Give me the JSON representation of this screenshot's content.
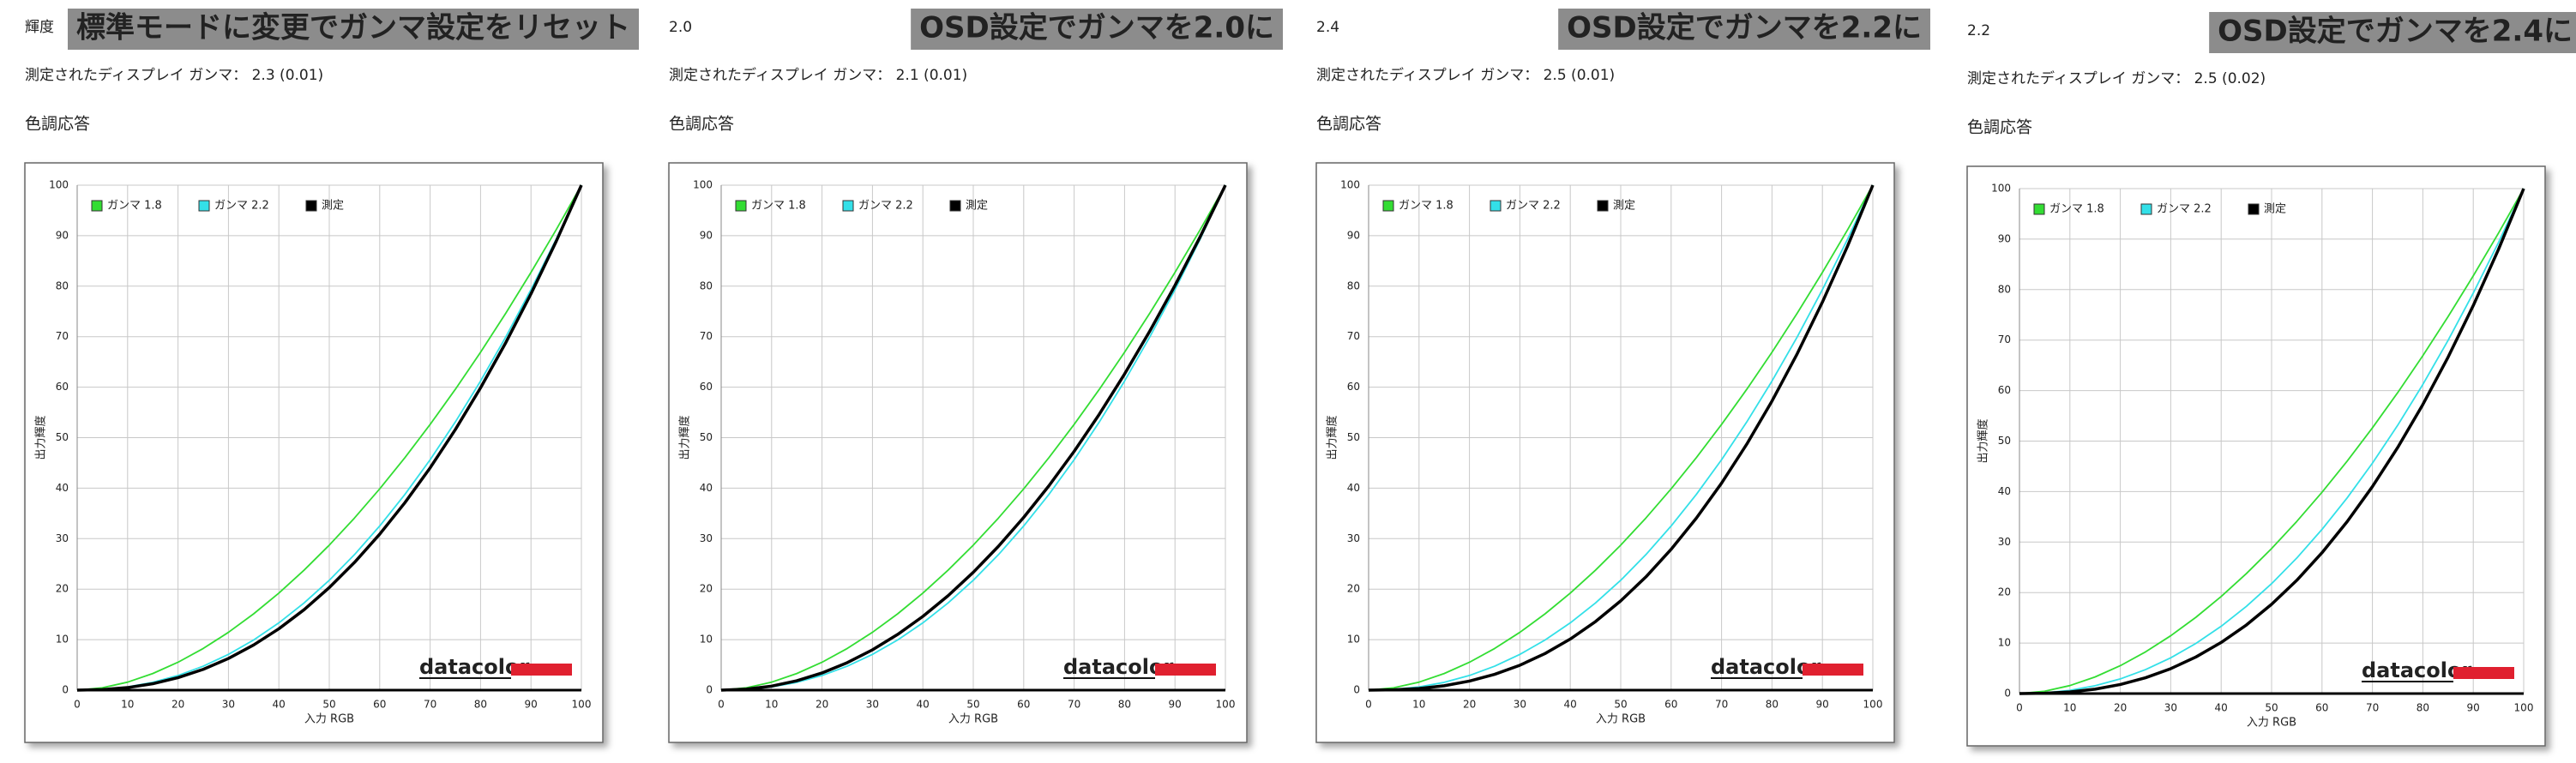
{
  "chart_data": [
    {
      "type": "line",
      "header": "輝度",
      "banner": "標準モードに変更でガンマ設定をリセット",
      "banner_color": "#33ff33",
      "banner_background": "#8c8c8c",
      "measured_label": "測定されたディスプレイ ガンマ： 2.3 (0.01)",
      "section_title": "色調応答",
      "xlabel": "入力 RGB",
      "ylabel": "出力輝度",
      "logo": "datacolor",
      "x": [
        0,
        5,
        10,
        15,
        20,
        25,
        30,
        35,
        40,
        45,
        50,
        55,
        60,
        65,
        70,
        75,
        80,
        85,
        90,
        95,
        100
      ],
      "series": [
        {
          "name": "ガンマ 1.8",
          "color": "#33dd33",
          "values": [
            0,
            0.46,
            1.58,
            3.29,
            5.52,
            8.25,
            11.45,
            15.11,
            19.22,
            23.76,
            28.72,
            34.09,
            39.87,
            46.05,
            52.62,
            59.58,
            66.92,
            74.64,
            82.73,
            91.18,
            100
          ]
        },
        {
          "name": "ガンマ 2.2",
          "color": "#33e0e8",
          "values": [
            0,
            0.14,
            0.63,
            1.54,
            2.9,
            4.74,
            7.08,
            9.93,
            13.32,
            17.26,
            21.76,
            26.84,
            32.51,
            38.76,
            45.63,
            53.11,
            61.21,
            69.94,
            79.31,
            89.33,
            100
          ]
        },
        {
          "name": "測定",
          "color": "#000000",
          "values": [
            0,
            0.1,
            0.5,
            1.27,
            2.47,
            4.12,
            6.27,
            8.94,
            12.15,
            15.93,
            20.31,
            25.29,
            30.89,
            37.13,
            44.02,
            51.6,
            59.87,
            68.81,
            78.48,
            88.87,
            100
          ]
        }
      ],
      "xlim": [
        0,
        100
      ],
      "ylim": [
        0,
        100
      ],
      "xticks": [
        0,
        10,
        20,
        30,
        40,
        50,
        60,
        70,
        80,
        90,
        100
      ],
      "yticks": [
        0,
        10,
        20,
        30,
        40,
        50,
        60,
        70,
        80,
        90,
        100
      ],
      "grid": true,
      "legend": "upper left"
    },
    {
      "type": "line",
      "header": "2.0",
      "banner": "OSD設定でガンマを2.0に",
      "banner_color": "#00ffff",
      "banner_background": "#8c8c8c",
      "measured_label": "測定されたディスプレイ ガンマ： 2.1 (0.01)",
      "section_title": "色調応答",
      "xlabel": "入力 RGB",
      "ylabel": "出力輝度",
      "logo": "datacolor",
      "x": [
        0,
        5,
        10,
        15,
        20,
        25,
        30,
        35,
        40,
        45,
        50,
        55,
        60,
        65,
        70,
        75,
        80,
        85,
        90,
        95,
        100
      ],
      "series": [
        {
          "name": "ガンマ 1.8",
          "color": "#33dd33",
          "values": [
            0,
            0.46,
            1.58,
            3.29,
            5.52,
            8.25,
            11.45,
            15.11,
            19.22,
            23.76,
            28.72,
            34.09,
            39.87,
            46.05,
            52.62,
            59.58,
            66.92,
            74.64,
            82.73,
            91.18,
            100
          ]
        },
        {
          "name": "ガンマ 2.2",
          "color": "#33e0e8",
          "values": [
            0,
            0.14,
            0.63,
            1.54,
            2.9,
            4.74,
            7.08,
            9.93,
            13.32,
            17.26,
            21.76,
            26.84,
            32.51,
            38.76,
            45.63,
            53.11,
            61.21,
            69.94,
            79.31,
            89.33,
            100
          ]
        },
        {
          "name": "測定",
          "color": "#000000",
          "values": [
            0,
            0.19,
            0.79,
            1.86,
            3.4,
            5.44,
            7.98,
            11.03,
            14.6,
            18.7,
            23.33,
            28.5,
            34.21,
            40.47,
            47.28,
            54.65,
            62.6,
            71.09,
            80.15,
            89.79,
            100
          ]
        }
      ],
      "xlim": [
        0,
        100
      ],
      "ylim": [
        0,
        100
      ],
      "xticks": [
        0,
        10,
        20,
        30,
        40,
        50,
        60,
        70,
        80,
        90,
        100
      ],
      "yticks": [
        0,
        10,
        20,
        30,
        40,
        50,
        60,
        70,
        80,
        90,
        100
      ],
      "grid": true,
      "legend": "upper left"
    },
    {
      "type": "line",
      "header": "2.4",
      "banner": "OSD設定でガンマを2.2に",
      "banner_color": "#00ffff",
      "banner_background": "#8c8c8c",
      "measured_label": "測定されたディスプレイ ガンマ： 2.5 (0.01)",
      "section_title": "色調応答",
      "xlabel": "入力 RGB",
      "ylabel": "出力輝度",
      "logo": "datacolor",
      "x": [
        0,
        5,
        10,
        15,
        20,
        25,
        30,
        35,
        40,
        45,
        50,
        55,
        60,
        65,
        70,
        75,
        80,
        85,
        90,
        95,
        100
      ],
      "series": [
        {
          "name": "ガンマ 1.8",
          "color": "#33dd33",
          "values": [
            0,
            0.46,
            1.58,
            3.29,
            5.52,
            8.25,
            11.45,
            15.11,
            19.22,
            23.76,
            28.72,
            34.09,
            39.87,
            46.05,
            52.62,
            59.58,
            66.92,
            74.64,
            82.73,
            91.18,
            100
          ]
        },
        {
          "name": "ガンマ 2.2",
          "color": "#33e0e8",
          "values": [
            0,
            0.14,
            0.63,
            1.54,
            2.9,
            4.74,
            7.08,
            9.93,
            13.32,
            17.26,
            21.76,
            26.84,
            32.51,
            38.76,
            45.63,
            53.11,
            61.21,
            69.94,
            79.31,
            89.33,
            100
          ]
        },
        {
          "name": "測定",
          "color": "#000000",
          "values": [
            0,
            0.06,
            0.32,
            0.87,
            1.79,
            3.13,
            4.93,
            7.25,
            10.12,
            13.58,
            17.68,
            22.43,
            27.89,
            34.06,
            40.99,
            48.71,
            57.24,
            66.61,
            76.84,
            87.96,
            100
          ]
        }
      ],
      "xlim": [
        0,
        100
      ],
      "ylim": [
        0,
        100
      ],
      "xticks": [
        0,
        10,
        20,
        30,
        40,
        50,
        60,
        70,
        80,
        90,
        100
      ],
      "yticks": [
        0,
        10,
        20,
        30,
        40,
        50,
        60,
        70,
        80,
        90,
        100
      ],
      "grid": true,
      "legend": "upper left"
    },
    {
      "type": "line",
      "header": "2.2",
      "banner": "OSD設定でガンマを2.4に",
      "banner_color": "#00ffff",
      "banner_background": "#8c8c8c",
      "measured_label": "測定されたディスプレイ ガンマ： 2.5 (0.02)",
      "section_title": "色調応答",
      "xlabel": "入力 RGB",
      "ylabel": "出力輝度",
      "logo": "datacolor",
      "x": [
        0,
        5,
        10,
        15,
        20,
        25,
        30,
        35,
        40,
        45,
        50,
        55,
        60,
        65,
        70,
        75,
        80,
        85,
        90,
        95,
        100
      ],
      "series": [
        {
          "name": "ガンマ 1.8",
          "color": "#33dd33",
          "values": [
            0,
            0.46,
            1.58,
            3.29,
            5.52,
            8.25,
            11.45,
            15.11,
            19.22,
            23.76,
            28.72,
            34.09,
            39.87,
            46.05,
            52.62,
            59.58,
            66.92,
            74.64,
            82.73,
            91.18,
            100
          ]
        },
        {
          "name": "ガンマ 2.2",
          "color": "#33e0e8",
          "values": [
            0,
            0.14,
            0.63,
            1.54,
            2.9,
            4.74,
            7.08,
            9.93,
            13.32,
            17.26,
            21.76,
            26.84,
            32.51,
            38.76,
            45.63,
            53.11,
            61.21,
            69.94,
            79.31,
            89.33,
            100
          ]
        },
        {
          "name": "測定",
          "color": "#000000",
          "values": [
            0,
            0.06,
            0.32,
            0.87,
            1.79,
            3.13,
            4.93,
            7.25,
            10.12,
            13.58,
            17.68,
            22.43,
            27.89,
            34.06,
            40.99,
            48.71,
            57.24,
            66.61,
            76.84,
            87.96,
            100
          ]
        }
      ],
      "xlim": [
        0,
        100
      ],
      "ylim": [
        0,
        100
      ],
      "xticks": [
        0,
        10,
        20,
        30,
        40,
        50,
        60,
        70,
        80,
        90,
        100
      ],
      "yticks": [
        0,
        10,
        20,
        30,
        40,
        50,
        60,
        70,
        80,
        90,
        100
      ],
      "grid": true,
      "legend": "upper left"
    }
  ]
}
